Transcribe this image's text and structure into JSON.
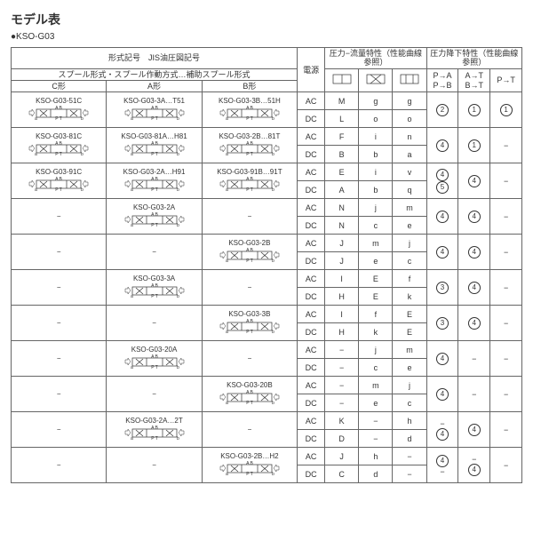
{
  "page_title": "モデル表",
  "page_subtitle": "●KSO-G03",
  "header": {
    "model_sign": "形式記号　JIS油圧図記号",
    "spool": "スプール形式・スプール作動方式…補助スプール形式",
    "c_shape": "C形",
    "a_shape": "A形",
    "b_shape": "B形",
    "power": "電源",
    "flow_group": "圧力−流量特性（性能曲線参照）",
    "drop_group": "圧力降下特性（性能曲線参照）",
    "pa": "P→A",
    "pb": "P→B",
    "at": "A→T",
    "bt": "B→T",
    "pt": "P→T"
  },
  "port_label": "A B\nP T",
  "ac": "AC",
  "dc": "DC",
  "dash": "−",
  "rows": [
    {
      "c": "KSO-G03-51C",
      "a": "KSO-G03-3A…T51",
      "b": "KSO-G03-3B…51H",
      "ac": [
        "M",
        "g",
        "g"
      ],
      "dc": [
        "L",
        "o",
        "o"
      ],
      "d1": "②",
      "d2": "①",
      "d3": "①"
    },
    {
      "c": "KSO-G03-81C",
      "a": "KSO-G03-81A…H81",
      "b": "KSO-G03-2B…81T",
      "ac": [
        "F",
        "i",
        "n"
      ],
      "dc": [
        "B",
        "b",
        "a"
      ],
      "d1": "④",
      "d2": "①",
      "d3": "−"
    },
    {
      "c": "KSO-G03-91C",
      "a": "KSO-G03-2A…H91",
      "b": "KSO-G03-91B…91T",
      "ac": [
        "E",
        "i",
        "v"
      ],
      "dc": [
        "A",
        "b",
        "q"
      ],
      "d1": "④⑤",
      "d2": "④",
      "d3": "−"
    },
    {
      "c": null,
      "a": "KSO-G03-2A",
      "b": null,
      "ac": [
        "N",
        "j",
        "m"
      ],
      "dc": [
        "N",
        "c",
        "e"
      ],
      "d1": "④",
      "d2": "④",
      "d3": "−"
    },
    {
      "c": null,
      "a": null,
      "b": "KSO-G03-2B",
      "ac": [
        "J",
        "m",
        "j"
      ],
      "dc": [
        "J",
        "e",
        "c"
      ],
      "d1": "④",
      "d2": "④",
      "d3": "−"
    },
    {
      "c": null,
      "a": "KSO-G03-3A",
      "b": null,
      "ac": [
        "I",
        "E",
        "f"
      ],
      "dc": [
        "H",
        "E",
        "k"
      ],
      "d1": "③",
      "d2": "④",
      "d3": "−"
    },
    {
      "c": null,
      "a": null,
      "b": "KSO-G03-3B",
      "ac": [
        "I",
        "f",
        "E"
      ],
      "dc": [
        "H",
        "k",
        "E"
      ],
      "d1": "③",
      "d2": "④",
      "d3": "−"
    },
    {
      "c": null,
      "a": "KSO-G03-20A",
      "b": null,
      "ac": [
        "−",
        "j",
        "m"
      ],
      "dc": [
        "−",
        "c",
        "e"
      ],
      "d1": "④",
      "d2": "−",
      "d3": "−"
    },
    {
      "c": null,
      "a": null,
      "b": "KSO-G03-20B",
      "ac": [
        "−",
        "m",
        "j"
      ],
      "dc": [
        "−",
        "e",
        "c"
      ],
      "d1": "④",
      "d2": "−",
      "d3": "−"
    },
    {
      "c": null,
      "a": "KSO-G03-2A…2T",
      "b": null,
      "ac": [
        "K",
        "−",
        "h"
      ],
      "dc": [
        "D",
        "−",
        "d"
      ],
      "d1": "−④",
      "d2": "④",
      "d3": "−"
    },
    {
      "c": null,
      "a": null,
      "b": "KSO-G03-2B…H2",
      "ac": [
        "J",
        "h",
        "−"
      ],
      "dc": [
        "C",
        "d",
        "−"
      ],
      "d1": "④−",
      "d2": "−④",
      "d3": "−"
    }
  ]
}
